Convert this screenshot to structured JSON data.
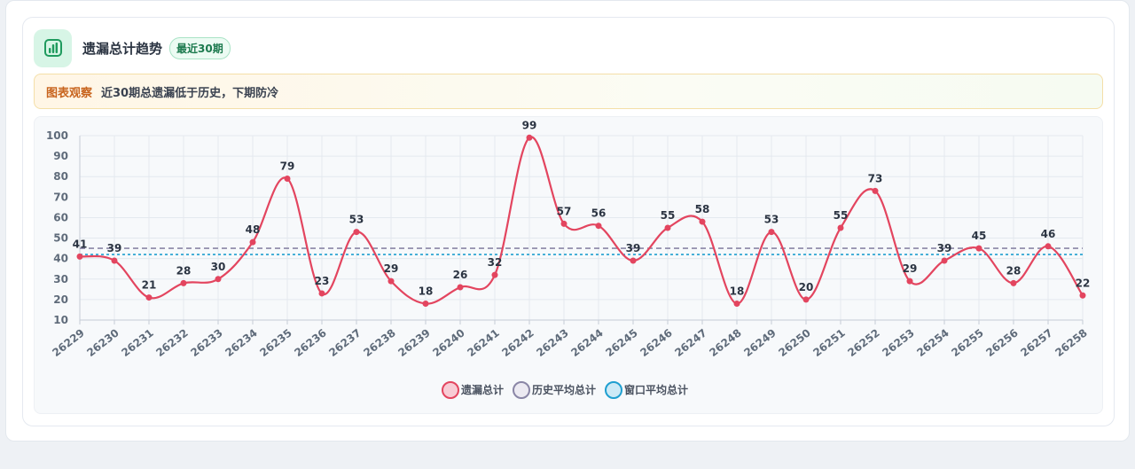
{
  "header": {
    "title": "遗漏总计趋势",
    "badge": "最近30期"
  },
  "observation": {
    "label": "图表观察",
    "text": "近30期总遗漏低于历史，下期防冷"
  },
  "icon": "bar-chart-icon",
  "colors": {
    "series": "#e3455f",
    "history_avg": "#8a86a6",
    "window_avg": "#1f9fd0",
    "icon_bg": "#d7f5e6",
    "accent_green": "#1f9b5e"
  },
  "chart_data": {
    "type": "line",
    "x": [
      "26229",
      "26230",
      "26231",
      "26232",
      "26233",
      "26234",
      "26235",
      "26236",
      "26237",
      "26238",
      "26239",
      "26240",
      "26241",
      "26242",
      "26243",
      "26244",
      "26245",
      "26246",
      "26247",
      "26248",
      "26249",
      "26250",
      "26251",
      "26252",
      "26253",
      "26254",
      "26255",
      "26256",
      "26257",
      "26258"
    ],
    "series": [
      {
        "name": "遗漏总计",
        "values": [
          41,
          39,
          21,
          28,
          30,
          48,
          79,
          23,
          53,
          29,
          18,
          26,
          32,
          99,
          57,
          56,
          39,
          55,
          58,
          18,
          53,
          20,
          55,
          73,
          29,
          39,
          45,
          28,
          46,
          22
        ]
      },
      {
        "name": "历史平均总计",
        "value": 45
      },
      {
        "name": "窗口平均总计",
        "value": 42
      }
    ],
    "ylim": [
      10,
      100
    ],
    "yticks": [
      "10",
      "20",
      "30",
      "40",
      "50",
      "60",
      "70",
      "80",
      "90",
      "100"
    ],
    "grid": true,
    "legend_position": "bottom"
  }
}
